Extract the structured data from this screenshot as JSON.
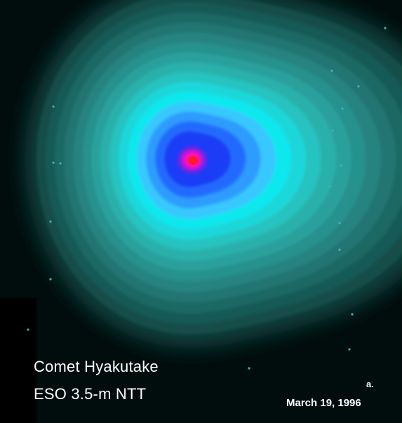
{
  "image": {
    "title": "Comet Hyakutake",
    "telescope": "ESO 3.5-m NTT",
    "panel_label": "a.",
    "date": "March 19, 1996"
  },
  "colors": {
    "background": "#010d0c",
    "outer_glow": "#0c3f3d",
    "contour_levels": [
      "#124d4a",
      "#175a57",
      "#1c6764",
      "#217572",
      "#25837f",
      "#28918d",
      "#2aa09c",
      "#2bb0ab",
      "#26c3c0",
      "#1ad7da",
      "#10e8ee",
      "#38c8ff",
      "#2f9bff",
      "#246bff",
      "#1a3cf6"
    ],
    "core_violet": "#7a20e8",
    "core_magenta": "#ff10c0",
    "nucleus": "#ff1a2a",
    "stars": "#3fb6b0",
    "caption_text": "#ffffff"
  }
}
